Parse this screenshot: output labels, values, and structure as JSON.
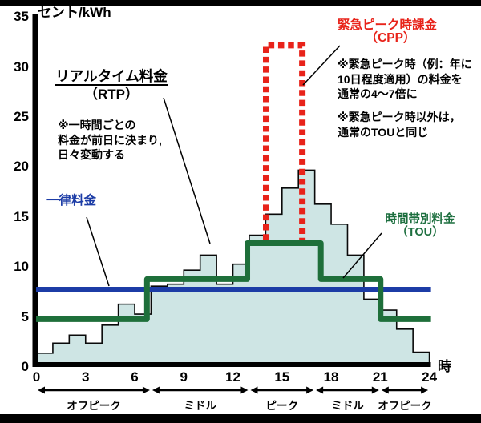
{
  "page": {
    "unit_label": "セント/kWh",
    "hour_suffix": "時"
  },
  "annotations": {
    "rtp": {
      "title": "リアルタイム料金",
      "subtitle": "（RTP）",
      "note_lines": [
        "※一時間ごとの",
        "料金が前日に決まり,",
        "日々変動する"
      ],
      "color": "#000000"
    },
    "flat": {
      "label": "一律料金",
      "color": "#1c3ca6"
    },
    "cpp": {
      "title": "緊急ピーク時課金",
      "subtitle": "（CPP）",
      "note1_lines": [
        "※緊急ピーク時（例：年に",
        "10日程度適用）の料金を",
        "通常の4～7倍に"
      ],
      "note2_lines": [
        "※緊急ピーク時以外は，",
        "通常のTOUと同じ"
      ],
      "color": "#e8231a"
    },
    "tou": {
      "title": "時間帯別料金",
      "subtitle": "（TOU）",
      "color": "#1d6f3f"
    }
  },
  "chart_data": {
    "type": "combo",
    "ylabel": "セント/kWh",
    "xlabel": "時",
    "xlim": [
      0,
      24
    ],
    "ylim": [
      0,
      35
    ],
    "xticks": [
      0,
      3,
      6,
      9,
      12,
      15,
      18,
      21,
      24
    ],
    "yticks": [
      0,
      5,
      10,
      15,
      20,
      25,
      30,
      35
    ],
    "grid": false,
    "series": [
      {
        "name": "リアルタイム料金（RTP）",
        "type": "area-step",
        "hours": [
          0,
          1,
          2,
          3,
          4,
          5,
          6,
          7,
          8,
          9,
          10,
          11,
          12,
          13,
          14,
          15,
          16,
          17,
          18,
          19,
          20,
          21,
          22,
          23
        ],
        "values": [
          1.3,
          2.3,
          3.1,
          2.3,
          4.1,
          6.2,
          5.2,
          8.0,
          8.2,
          9.6,
          11.1,
          8.2,
          10.2,
          13.1,
          15.2,
          17.8,
          19.6,
          16.2,
          14.2,
          11.1,
          6.7,
          5.6,
          3.7,
          1.4
        ],
        "fill": "#cee5e4",
        "stroke": "#0a0a0a"
      },
      {
        "name": "一律料金",
        "type": "line",
        "value": 7.65,
        "x_range": [
          0,
          24.1
        ],
        "color": "#1c3ca6"
      },
      {
        "name": "時間帯別料金（TOU）",
        "type": "step",
        "breakpoint_hours": [
          0,
          6.75,
          12.88,
          17.37,
          21.02,
          24.1
        ],
        "values": [
          4.7,
          8.7,
          12.3,
          8.7,
          4.7
        ],
        "color": "#1e6f3a"
      },
      {
        "name": "緊急ピーク時課金（CPP）",
        "type": "dashed-step",
        "window_hours": [
          14.03,
          16.24
        ],
        "peak_value": 32.1,
        "base_value": 12.6,
        "color": "#e8231a"
      }
    ],
    "zones": [
      {
        "label": "オフピーク",
        "from": 0,
        "to": 7
      },
      {
        "label": "ミドル",
        "from": 7,
        "to": 13
      },
      {
        "label": "ピーク",
        "from": 13,
        "to": 17
      },
      {
        "label": "ミドル",
        "from": 17,
        "to": 21
      },
      {
        "label": "オフピーク",
        "from": 21,
        "to": 24
      }
    ]
  }
}
